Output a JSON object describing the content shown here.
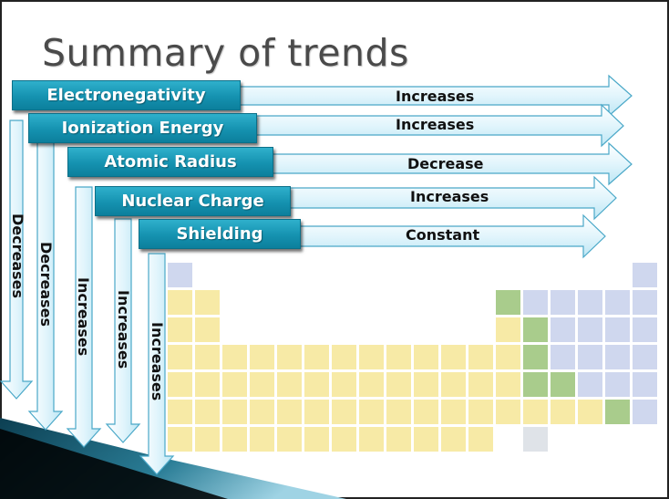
{
  "slide": {
    "title": "Summary of trends",
    "trends": [
      {
        "property": "Electronegativity",
        "across_period": "Increases",
        "down_group": "Decreases"
      },
      {
        "property": "Ionization Energy",
        "across_period": "Increases",
        "down_group": "Decreases"
      },
      {
        "property": "Atomic Radius",
        "across_period": "Decrease",
        "down_group": "Increases"
      },
      {
        "property": "Nuclear Charge",
        "across_period": "Increases",
        "down_group": "Increases"
      },
      {
        "property": "Shielding",
        "across_period": "Constant",
        "down_group": "Increases"
      }
    ]
  },
  "colors": {
    "label_box": "#1592b0",
    "arrow_fill": "#dff3fb",
    "arrow_stroke": "#3fa9c9",
    "metal": "#f7eaa6",
    "nonmetal": "#cfd7ee",
    "metalloid": "#a9cc8c"
  }
}
